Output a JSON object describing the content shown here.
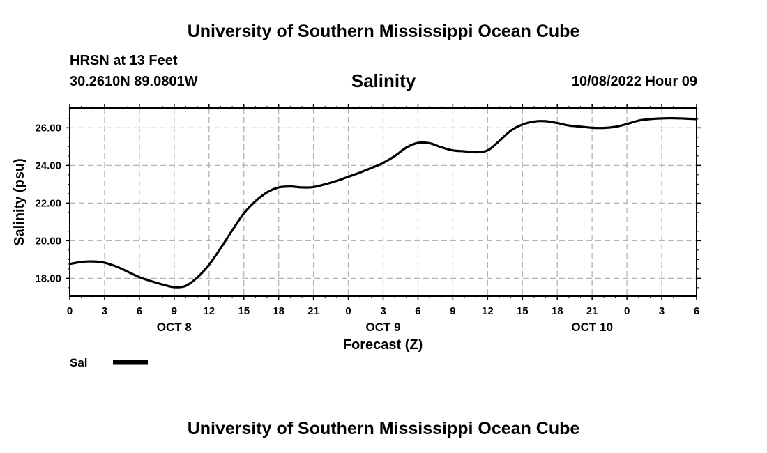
{
  "header": {
    "title": "University of Southern Mississippi Ocean Cube",
    "station": "HRSN at 13 Feet",
    "coords": "30.2610N  89.0801W",
    "variable": "Salinity",
    "datetime": "10/08/2022 Hour 09"
  },
  "footer": {
    "title": "University of Southern Mississippi Ocean Cube"
  },
  "legend": {
    "label": "Sal"
  },
  "colors": {
    "line": "#000000",
    "grid": "#b4b4b4",
    "background": "#ffffff"
  },
  "chart_data": {
    "type": "line",
    "title": "Salinity",
    "xlabel": "Forecast (Z)",
    "ylabel": "Salinity (psu)",
    "x_tick_labels": [
      "0",
      "3",
      "6",
      "9",
      "12",
      "15",
      "18",
      "21",
      "0",
      "3",
      "6",
      "9",
      "12",
      "15",
      "18",
      "21",
      "0",
      "3",
      "6"
    ],
    "date_labels": [
      {
        "hour": 12,
        "text": "OCT 8"
      },
      {
        "hour": 36,
        "text": "OCT 9"
      },
      {
        "hour": 60,
        "text": "OCT 10"
      }
    ],
    "y_ticks": [
      "18.00",
      "20.00",
      "22.00",
      "24.00",
      "26.00"
    ],
    "y_tick_values": [
      18,
      20,
      22,
      24,
      26
    ],
    "xlim": [
      0,
      54
    ],
    "ylim": [
      17.05,
      27.05
    ],
    "grid": true,
    "legend_position": "bottom-left",
    "series": [
      {
        "name": "Sal",
        "x": [
          0,
          1,
          2,
          3,
          4,
          5,
          6,
          7,
          8,
          9,
          10,
          11,
          12,
          13,
          14,
          15,
          16,
          17,
          18,
          19,
          20,
          21,
          22,
          23,
          24,
          25,
          26,
          27,
          28,
          29,
          30,
          31,
          32,
          33,
          34,
          35,
          36,
          37,
          38,
          39,
          40,
          41,
          42,
          43,
          44,
          45,
          46,
          47,
          48,
          49,
          50,
          51,
          52,
          53,
          54
        ],
        "values": [
          18.76,
          18.87,
          18.9,
          18.83,
          18.63,
          18.35,
          18.06,
          17.85,
          17.67,
          17.53,
          17.6,
          18.05,
          18.72,
          19.6,
          20.55,
          21.45,
          22.1,
          22.57,
          22.83,
          22.88,
          22.83,
          22.85,
          23.0,
          23.18,
          23.4,
          23.62,
          23.87,
          24.13,
          24.5,
          24.95,
          25.2,
          25.18,
          24.97,
          24.8,
          24.75,
          24.7,
          24.8,
          25.3,
          25.85,
          26.17,
          26.33,
          26.35,
          26.25,
          26.12,
          26.06,
          26.0,
          25.99,
          26.05,
          26.2,
          26.38,
          26.46,
          26.5,
          26.51,
          26.49,
          26.46
        ]
      }
    ]
  }
}
